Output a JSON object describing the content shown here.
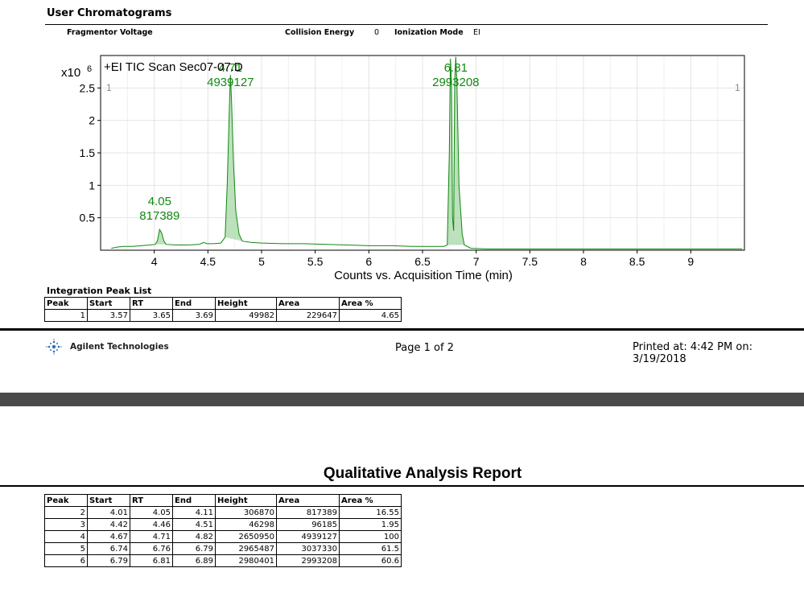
{
  "header": {
    "title": "User Chromatograms",
    "fragmentor_label": "Fragmentor Voltage",
    "collision_label": "Collision Energy",
    "collision_value": "0",
    "ionization_label": "Ionization Mode",
    "ionization_value": "EI"
  },
  "chart_data": {
    "type": "line",
    "title": "+EI TIC Scan Sec07-07.D",
    "y_multiplier_label": "x10",
    "y_multiplier_exp": "6",
    "xlabel": "Counts vs. Acquisition Time (min)",
    "ylabel": "",
    "xlim": [
      3.5,
      9.5
    ],
    "ylim": [
      0,
      3.0
    ],
    "x_ticks": [
      "4",
      "4.5",
      "5",
      "5.5",
      "6",
      "6.5",
      "7",
      "7.5",
      "8",
      "8.5",
      "9"
    ],
    "y_ticks": [
      "0.5",
      "1",
      "1.5",
      "2",
      "2.5"
    ],
    "grid": true,
    "color": "#118811",
    "marker_labels": [
      "1",
      "1"
    ],
    "series": [
      {
        "points": [
          [
            3.6,
            0.03
          ],
          [
            3.66,
            0.05
          ],
          [
            3.72,
            0.06
          ],
          [
            3.8,
            0.06
          ],
          [
            3.88,
            0.07
          ],
          [
            3.96,
            0.08
          ],
          [
            4.01,
            0.09
          ],
          [
            4.03,
            0.15
          ],
          [
            4.05,
            0.32
          ],
          [
            4.07,
            0.26
          ],
          [
            4.09,
            0.14
          ],
          [
            4.11,
            0.09
          ],
          [
            4.2,
            0.08
          ],
          [
            4.3,
            0.08
          ],
          [
            4.42,
            0.09
          ],
          [
            4.46,
            0.12
          ],
          [
            4.49,
            0.1
          ],
          [
            4.55,
            0.1
          ],
          [
            4.62,
            0.11
          ],
          [
            4.66,
            0.2
          ],
          [
            4.68,
            1.0
          ],
          [
            4.7,
            2.2
          ],
          [
            4.71,
            2.7
          ],
          [
            4.72,
            2.3
          ],
          [
            4.74,
            1.3
          ],
          [
            4.76,
            0.6
          ],
          [
            4.79,
            0.25
          ],
          [
            4.82,
            0.14
          ],
          [
            4.9,
            0.12
          ],
          [
            5.0,
            0.11
          ],
          [
            5.2,
            0.1
          ],
          [
            5.4,
            0.1
          ],
          [
            5.6,
            0.09
          ],
          [
            5.8,
            0.08
          ],
          [
            6.0,
            0.07
          ],
          [
            6.2,
            0.07
          ],
          [
            6.4,
            0.06
          ],
          [
            6.6,
            0.06
          ],
          [
            6.7,
            0.06
          ],
          [
            6.73,
            0.08
          ],
          [
            6.75,
            1.5
          ],
          [
            6.76,
            2.95
          ],
          [
            6.77,
            2.6
          ],
          [
            6.78,
            0.5
          ],
          [
            6.79,
            0.3
          ],
          [
            6.8,
            2.6
          ],
          [
            6.81,
            2.98
          ],
          [
            6.82,
            2.6
          ],
          [
            6.84,
            1.0
          ],
          [
            6.87,
            0.25
          ],
          [
            6.89,
            0.08
          ],
          [
            6.95,
            0.03
          ],
          [
            7.1,
            0.02
          ],
          [
            7.5,
            0.02
          ],
          [
            8.0,
            0.02
          ],
          [
            8.5,
            0.02
          ],
          [
            9.0,
            0.02
          ],
          [
            9.48,
            0.02
          ]
        ]
      }
    ],
    "peak_labels": [
      {
        "rt": "4.05",
        "height": "817389",
        "x": 4.05,
        "y": 0.32
      },
      {
        "rt": "4.71",
        "height": "4939127",
        "x": 4.71,
        "y": 2.7
      },
      {
        "rt": "6.81",
        "height": "2993208",
        "x": 6.81,
        "y": 2.98
      }
    ]
  },
  "integration": {
    "title": "Integration Peak List",
    "headers": [
      "Peak",
      "Start",
      "RT",
      "End",
      "Height",
      "Area",
      "Area %"
    ],
    "rows": [
      [
        "1",
        "3.57",
        "3.65",
        "3.69",
        "49982",
        "229647",
        "4.65"
      ]
    ]
  },
  "footer": {
    "company": "Agilent Technologies",
    "page": "Page 1 of 2",
    "printed": "Printed at: 4:42 PM on: 3/19/2018"
  },
  "report": {
    "title": "Qualitative Analysis Report",
    "headers": [
      "Peak",
      "Start",
      "RT",
      "End",
      "Height",
      "Area",
      "Area %"
    ],
    "rows": [
      [
        "2",
        "4.01",
        "4.05",
        "4.11",
        "306870",
        "817389",
        "16.55"
      ],
      [
        "3",
        "4.42",
        "4.46",
        "4.51",
        "46298",
        "96185",
        "1.95"
      ],
      [
        "4",
        "4.67",
        "4.71",
        "4.82",
        "2650950",
        "4939127",
        "100"
      ],
      [
        "5",
        "6.74",
        "6.76",
        "6.79",
        "2965487",
        "3037330",
        "61.5"
      ],
      [
        "6",
        "6.79",
        "6.81",
        "6.89",
        "2980401",
        "2993208",
        "60.6"
      ]
    ]
  },
  "colors": {
    "trace": "#118811",
    "page_break": "#4a4a4a"
  }
}
